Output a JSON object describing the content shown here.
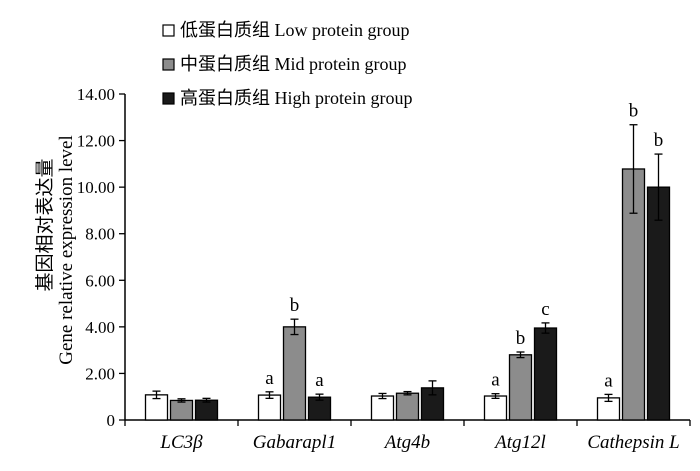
{
  "chart_data": {
    "type": "bar",
    "categories": [
      "LC3β",
      "Gabarapl1",
      "Atg4b",
      "Atg12l",
      "Cathepsin L"
    ],
    "series": [
      {
        "name": "低蛋白质组 Low protein group",
        "color": "#ffffff",
        "values": [
          1.08,
          1.07,
          1.03,
          1.03,
          0.95
        ],
        "errors": [
          0.16,
          0.14,
          0.11,
          0.1,
          0.15
        ],
        "labels": [
          "",
          "a",
          "",
          "a",
          "a"
        ]
      },
      {
        "name": "中蛋白质组 Mid protein group",
        "color": "#8c8c8c",
        "values": [
          0.84,
          4.0,
          1.15,
          2.8,
          10.78
        ],
        "errors": [
          0.07,
          0.33,
          0.07,
          0.12,
          1.9
        ],
        "labels": [
          "",
          "b",
          "",
          "b",
          "b"
        ]
      },
      {
        "name": "高蛋白质组 High protein group",
        "color": "#1a1a1a",
        "values": [
          0.85,
          0.98,
          1.38,
          3.95,
          10.0
        ],
        "errors": [
          0.08,
          0.13,
          0.3,
          0.22,
          1.42
        ],
        "labels": [
          "",
          "a",
          "",
          "c",
          "b"
        ]
      }
    ],
    "ylabel_cn": "基因相对表达量",
    "ylabel_en": "Gene relative expression level",
    "ylim": [
      0,
      14
    ],
    "yticks": [
      0,
      2,
      4,
      6,
      8,
      10,
      12,
      14
    ],
    "ytick_labels": [
      "0",
      "2.00",
      "4.00",
      "6.00",
      "8.00",
      "10.00",
      "12.00",
      "14.00"
    ],
    "legend_position": "top-left",
    "grid": false
  }
}
